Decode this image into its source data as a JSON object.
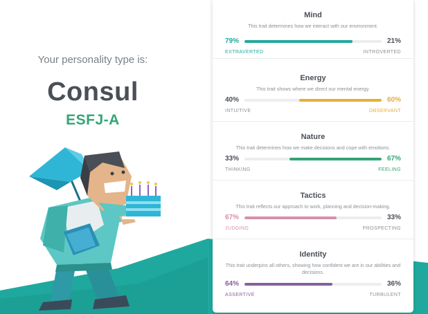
{
  "profile": {
    "intro": "Your personality type is:",
    "type_name": "Consul",
    "type_code": "ESFJ-A"
  },
  "colors": {
    "teal": "#1fa99e",
    "green": "#33a474",
    "amber": "#e4ae3a",
    "pink": "#d68fad",
    "purple": "#88619a",
    "text_dark": "#4a4f57",
    "text_muted": "#8a9096"
  },
  "traits": [
    {
      "title": "Mind",
      "description": "This trait determines how we interact with our environment.",
      "left_pct_label": "79%",
      "right_pct_label": "21%",
      "left_pole": "EXTRAVERTED",
      "right_pole": "INTROVERTED",
      "value": 0.79,
      "dominant": "left",
      "color": "#1fa99e"
    },
    {
      "title": "Energy",
      "description": "This trait shows where we direct our mental energy.",
      "left_pct_label": "40%",
      "right_pct_label": "60%",
      "left_pole": "INTUITIVE",
      "right_pole": "OBSERVANT",
      "value": 0.6,
      "dominant": "right",
      "color": "#e4ae3a"
    },
    {
      "title": "Nature",
      "description": "This trait determines how we make decisions and cope with emotions.",
      "left_pct_label": "33%",
      "right_pct_label": "67%",
      "left_pole": "THINKING",
      "right_pole": "FEELING",
      "value": 0.67,
      "dominant": "right",
      "color": "#33a474"
    },
    {
      "title": "Tactics",
      "description": "This trait reflects our approach to work, planning and decision-making.",
      "left_pct_label": "67%",
      "right_pct_label": "33%",
      "left_pole": "JUDGING",
      "right_pole": "PROSPECTING",
      "value": 0.67,
      "dominant": "left",
      "color": "#d68fad"
    },
    {
      "title": "Identity",
      "description": "This trait underpins all others, showing how confident we are in our abilities and decisions.",
      "left_pct_label": "64%",
      "right_pct_label": "36%",
      "left_pole": "ASSERTIVE",
      "right_pole": "TURBULENT",
      "value": 0.64,
      "dominant": "left",
      "color": "#88619a"
    }
  ]
}
